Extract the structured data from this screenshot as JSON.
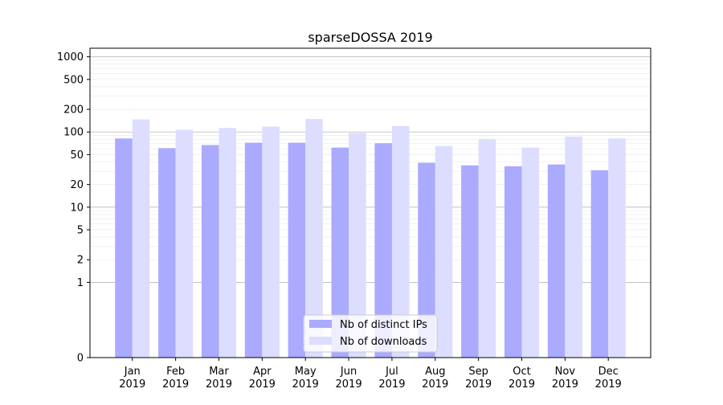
{
  "chart_data": {
    "type": "bar",
    "title": "sparseDOSSA 2019",
    "xlabel": "",
    "ylabel": "",
    "yscale": "symlog",
    "ylim": [
      0,
      1300
    ],
    "yticks": [
      0,
      1,
      2,
      5,
      10,
      20,
      50,
      100,
      200,
      500,
      1000
    ],
    "ytick_labels": [
      "0",
      "1",
      "2",
      "5",
      "10",
      "20",
      "50",
      "100",
      "200",
      "500",
      "1000"
    ],
    "categories": [
      "Jan\n2019",
      "Feb\n2019",
      "Mar\n2019",
      "Apr\n2019",
      "May\n2019",
      "Jun\n2019",
      "Jul\n2019",
      "Aug\n2019",
      "Sep\n2019",
      "Oct\n2019",
      "Nov\n2019",
      "Dec\n2019"
    ],
    "grid": true,
    "legend_position": "bottom-center",
    "series": [
      {
        "name": "Nb of distinct IPs",
        "color": "#aaaaff",
        "values": [
          82,
          61,
          67,
          72,
          72,
          62,
          71,
          39,
          36,
          35,
          37,
          31
        ]
      },
      {
        "name": "Nb of downloads",
        "color": "#ddddff",
        "values": [
          147,
          107,
          113,
          118,
          149,
          97,
          120,
          65,
          80,
          62,
          87,
          82
        ]
      }
    ]
  }
}
